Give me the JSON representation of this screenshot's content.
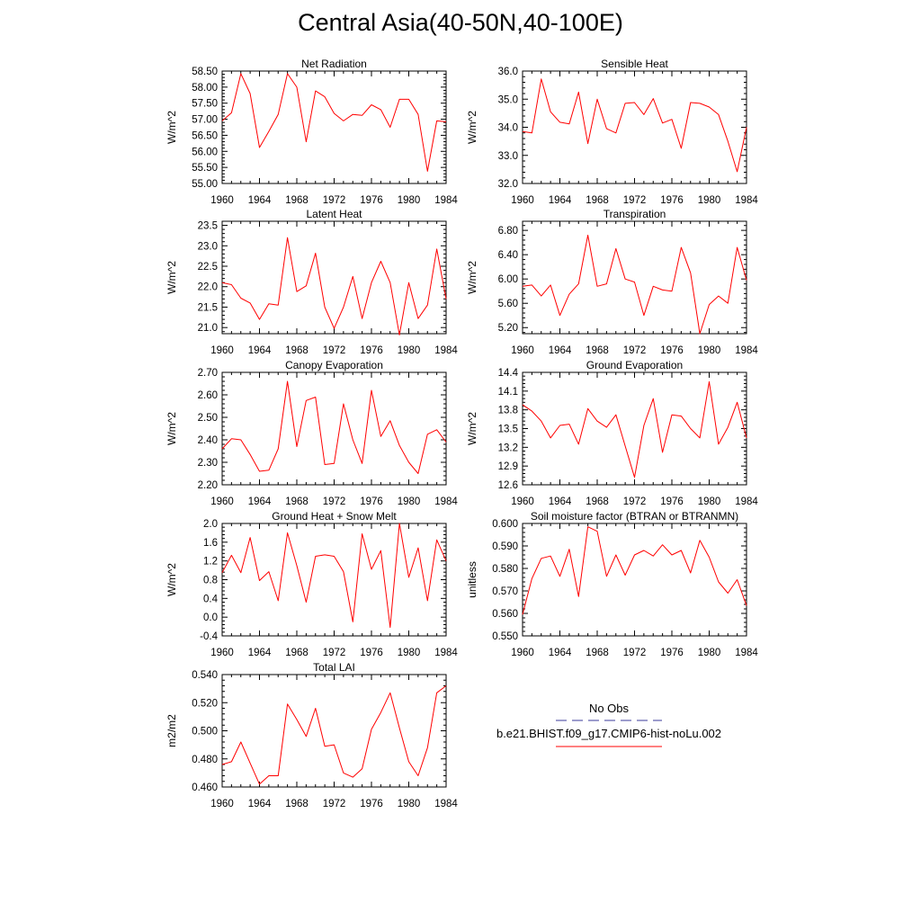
{
  "title": "Central Asia(40-50N,40-100E)",
  "colors": {
    "model_line": "#ff0000",
    "obs_line": "#3a3a9a",
    "frame": "#000000"
  },
  "legend": {
    "obs_label": "No Obs",
    "model_label": "b.e21.BHIST.f09_g17.CMIP6-hist-noLu.002"
  },
  "chart_data": [
    {
      "type": "line",
      "title": "Net Radiation",
      "ylabel": "W/m^2",
      "xlim": [
        1960,
        1984
      ],
      "ylim": [
        55.0,
        58.5
      ],
      "xticks": [
        1960,
        1964,
        1968,
        1972,
        1976,
        1980,
        1984
      ],
      "yticks": [
        55.0,
        55.5,
        56.0,
        56.5,
        57.0,
        57.5,
        58.0,
        58.5
      ],
      "ytick_labels": [
        "55.00",
        "55.50",
        "56.00",
        "56.50",
        "57.00",
        "57.50",
        "58.00",
        "58.50"
      ],
      "x": [
        1960,
        1961,
        1962,
        1963,
        1964,
        1965,
        1966,
        1967,
        1968,
        1969,
        1970,
        1971,
        1972,
        1973,
        1974,
        1975,
        1976,
        1977,
        1978,
        1979,
        1980,
        1981,
        1982,
        1983,
        1984
      ],
      "series": [
        {
          "name": "b.e21.BHIST.f09_g17.CMIP6-hist-noLu.002",
          "values": [
            56.95,
            57.2,
            58.42,
            57.8,
            56.12,
            56.62,
            57.15,
            58.42,
            58.0,
            56.3,
            57.88,
            57.7,
            57.18,
            56.95,
            57.15,
            57.12,
            57.45,
            57.3,
            56.75,
            57.62,
            57.62,
            57.15,
            55.38,
            56.95,
            56.92
          ]
        }
      ]
    },
    {
      "type": "line",
      "title": "Sensible Heat",
      "ylabel": "W/m^2",
      "xlim": [
        1960,
        1984
      ],
      "ylim": [
        32.0,
        36.0
      ],
      "xticks": [
        1960,
        1964,
        1968,
        1972,
        1976,
        1980,
        1984
      ],
      "yticks": [
        32.0,
        33.0,
        34.0,
        35.0,
        36.0
      ],
      "ytick_labels": [
        "32.0",
        "33.0",
        "34.0",
        "35.0",
        "36.0"
      ],
      "x": [
        1960,
        1961,
        1962,
        1963,
        1964,
        1965,
        1966,
        1967,
        1968,
        1969,
        1970,
        1971,
        1972,
        1973,
        1974,
        1975,
        1976,
        1977,
        1978,
        1979,
        1980,
        1981,
        1982,
        1983,
        1984
      ],
      "series": [
        {
          "name": "b.e21.BHIST.f09_g17.CMIP6-hist-noLu.002",
          "values": [
            33.85,
            33.8,
            35.72,
            34.55,
            34.18,
            34.12,
            35.25,
            33.42,
            35.0,
            33.95,
            33.8,
            34.85,
            34.88,
            34.45,
            35.02,
            34.15,
            34.28,
            33.25,
            34.88,
            34.85,
            34.72,
            34.45,
            33.5,
            32.42,
            34.0
          ]
        }
      ]
    },
    {
      "type": "line",
      "title": "Latent Heat",
      "ylabel": "W/m^2",
      "xlim": [
        1960,
        1984
      ],
      "ylim": [
        20.85,
        23.6
      ],
      "xticks": [
        1960,
        1964,
        1968,
        1972,
        1976,
        1980,
        1984
      ],
      "yticks": [
        21.0,
        21.5,
        22.0,
        22.5,
        23.0,
        23.5
      ],
      "ytick_labels": [
        "21.0",
        "21.5",
        "22.0",
        "22.5",
        "23.0",
        "23.5"
      ],
      "x": [
        1960,
        1961,
        1962,
        1963,
        1964,
        1965,
        1966,
        1967,
        1968,
        1969,
        1970,
        1971,
        1972,
        1973,
        1974,
        1975,
        1976,
        1977,
        1978,
        1979,
        1980,
        1981,
        1982,
        1983,
        1984
      ],
      "series": [
        {
          "name": "b.e21.BHIST.f09_g17.CMIP6-hist-noLu.002",
          "values": [
            22.1,
            22.05,
            21.72,
            21.6,
            21.2,
            21.58,
            21.55,
            23.2,
            21.88,
            22.02,
            22.82,
            21.5,
            20.98,
            21.5,
            22.25,
            21.22,
            22.1,
            22.62,
            22.1,
            20.82,
            22.1,
            21.22,
            21.55,
            22.92,
            21.7
          ]
        }
      ]
    },
    {
      "type": "line",
      "title": "Transpiration",
      "ylabel": "W/m^2",
      "xlim": [
        1960,
        1984
      ],
      "ylim": [
        5.1,
        6.95
      ],
      "xticks": [
        1960,
        1964,
        1968,
        1972,
        1976,
        1980,
        1984
      ],
      "yticks": [
        5.2,
        5.6,
        6.0,
        6.4,
        6.8
      ],
      "ytick_labels": [
        "5.20",
        "5.60",
        "6.00",
        "6.40",
        "6.80"
      ],
      "x": [
        1960,
        1961,
        1962,
        1963,
        1964,
        1965,
        1966,
        1967,
        1968,
        1969,
        1970,
        1971,
        1972,
        1973,
        1974,
        1975,
        1976,
        1977,
        1978,
        1979,
        1980,
        1981,
        1982,
        1983,
        1984
      ],
      "series": [
        {
          "name": "b.e21.BHIST.f09_g17.CMIP6-hist-noLu.002",
          "values": [
            5.88,
            5.9,
            5.72,
            5.9,
            5.4,
            5.75,
            5.92,
            6.72,
            5.88,
            5.92,
            6.5,
            6.0,
            5.95,
            5.4,
            5.88,
            5.82,
            5.8,
            6.52,
            6.1,
            5.1,
            5.58,
            5.72,
            5.6,
            6.52,
            5.98
          ]
        }
      ]
    },
    {
      "type": "line",
      "title": "Canopy Evaporation",
      "ylabel": "W/m^2",
      "xlim": [
        1960,
        1984
      ],
      "ylim": [
        2.2,
        2.7
      ],
      "xticks": [
        1960,
        1964,
        1968,
        1972,
        1976,
        1980,
        1984
      ],
      "yticks": [
        2.2,
        2.3,
        2.4,
        2.5,
        2.6,
        2.7
      ],
      "ytick_labels": [
        "2.20",
        "2.30",
        "2.40",
        "2.50",
        "2.60",
        "2.70"
      ],
      "x": [
        1960,
        1961,
        1962,
        1963,
        1964,
        1965,
        1966,
        1967,
        1968,
        1969,
        1970,
        1971,
        1972,
        1973,
        1974,
        1975,
        1976,
        1977,
        1978,
        1979,
        1980,
        1981,
        1982,
        1983,
        1984
      ],
      "series": [
        {
          "name": "b.e21.BHIST.f09_g17.CMIP6-hist-noLu.002",
          "values": [
            2.36,
            2.405,
            2.4,
            2.335,
            2.26,
            2.265,
            2.36,
            2.66,
            2.37,
            2.575,
            2.59,
            2.29,
            2.295,
            2.56,
            2.4,
            2.295,
            2.62,
            2.415,
            2.485,
            2.375,
            2.3,
            2.25,
            2.425,
            2.445,
            2.39
          ]
        }
      ]
    },
    {
      "type": "line",
      "title": "Ground Evaporation",
      "ylabel": "W/m^2",
      "xlim": [
        1960,
        1984
      ],
      "ylim": [
        12.6,
        14.4
      ],
      "xticks": [
        1960,
        1964,
        1968,
        1972,
        1976,
        1980,
        1984
      ],
      "yticks": [
        12.6,
        12.9,
        13.2,
        13.5,
        13.8,
        14.1,
        14.4
      ],
      "ytick_labels": [
        "12.6",
        "12.9",
        "13.2",
        "13.5",
        "13.8",
        "14.1",
        "14.4"
      ],
      "x": [
        1960,
        1961,
        1962,
        1963,
        1964,
        1965,
        1966,
        1967,
        1968,
        1969,
        1970,
        1971,
        1972,
        1973,
        1974,
        1975,
        1976,
        1977,
        1978,
        1979,
        1980,
        1981,
        1982,
        1983,
        1984
      ],
      "series": [
        {
          "name": "b.e21.BHIST.f09_g17.CMIP6-hist-noLu.002",
          "values": [
            13.88,
            13.78,
            13.62,
            13.35,
            13.55,
            13.57,
            13.25,
            13.82,
            13.62,
            13.52,
            13.72,
            13.22,
            12.72,
            13.55,
            13.98,
            13.12,
            13.72,
            13.7,
            13.5,
            13.35,
            14.25,
            13.25,
            13.52,
            13.92,
            13.35
          ]
        }
      ]
    },
    {
      "type": "line",
      "title": "Ground Heat + Snow Melt",
      "ylabel": "W/m^2",
      "xlim": [
        1960,
        1984
      ],
      "ylim": [
        -0.4,
        2.0
      ],
      "xticks": [
        1960,
        1964,
        1968,
        1972,
        1976,
        1980,
        1984
      ],
      "yticks": [
        -0.4,
        0.0,
        0.4,
        0.8,
        1.2,
        1.6,
        2.0
      ],
      "ytick_labels": [
        "-0.4",
        "0.0",
        "0.4",
        "0.8",
        "1.2",
        "1.6",
        "2.0"
      ],
      "x": [
        1960,
        1961,
        1962,
        1963,
        1964,
        1965,
        1966,
        1967,
        1968,
        1969,
        1970,
        1971,
        1972,
        1973,
        1974,
        1975,
        1976,
        1977,
        1978,
        1979,
        1980,
        1981,
        1982,
        1983,
        1984
      ],
      "series": [
        {
          "name": "b.e21.BHIST.f09_g17.CMIP6-hist-noLu.002",
          "values": [
            0.95,
            1.32,
            0.95,
            1.7,
            0.78,
            0.97,
            0.35,
            1.8,
            1.1,
            0.32,
            1.3,
            1.33,
            1.3,
            0.97,
            -0.1,
            1.78,
            1.02,
            1.42,
            -0.22,
            2.0,
            0.85,
            1.48,
            0.35,
            1.65,
            1.2
          ]
        }
      ]
    },
    {
      "type": "line",
      "title": "Soil moisture factor (BTRAN or BTRANMN)",
      "ylabel": "unitless",
      "xlim": [
        1960,
        1984
      ],
      "ylim": [
        0.55,
        0.6
      ],
      "xticks": [
        1960,
        1964,
        1968,
        1972,
        1976,
        1980,
        1984
      ],
      "yticks": [
        0.55,
        0.56,
        0.57,
        0.58,
        0.59,
        0.6
      ],
      "ytick_labels": [
        "0.550",
        "0.560",
        "0.570",
        "0.580",
        "0.590",
        "0.600"
      ],
      "x": [
        1960,
        1961,
        1962,
        1963,
        1964,
        1965,
        1966,
        1967,
        1968,
        1969,
        1970,
        1971,
        1972,
        1973,
        1974,
        1975,
        1976,
        1977,
        1978,
        1979,
        1980,
        1981,
        1982,
        1983,
        1984
      ],
      "series": [
        {
          "name": "b.e21.BHIST.f09_g17.CMIP6-hist-noLu.002",
          "values": [
            0.5595,
            0.5755,
            0.5845,
            0.5855,
            0.5765,
            0.5885,
            0.5675,
            0.5985,
            0.5965,
            0.5765,
            0.586,
            0.577,
            0.586,
            0.588,
            0.5855,
            0.5905,
            0.586,
            0.588,
            0.578,
            0.5925,
            0.585,
            0.574,
            0.569,
            0.575,
            0.5635
          ]
        }
      ]
    },
    {
      "type": "line",
      "title": "Total LAI",
      "ylabel": "m2/m2",
      "xlim": [
        1960,
        1984
      ],
      "ylim": [
        0.46,
        0.54
      ],
      "xticks": [
        1960,
        1964,
        1968,
        1972,
        1976,
        1980,
        1984
      ],
      "yticks": [
        0.46,
        0.48,
        0.5,
        0.52,
        0.54
      ],
      "ytick_labels": [
        "0.460",
        "0.480",
        "0.500",
        "0.520",
        "0.540"
      ],
      "x": [
        1960,
        1961,
        1962,
        1963,
        1964,
        1965,
        1966,
        1967,
        1968,
        1969,
        1970,
        1971,
        1972,
        1973,
        1974,
        1975,
        1976,
        1977,
        1978,
        1979,
        1980,
        1981,
        1982,
        1983,
        1984
      ],
      "series": [
        {
          "name": "b.e21.BHIST.f09_g17.CMIP6-hist-noLu.002",
          "values": [
            0.476,
            0.478,
            0.492,
            0.477,
            0.462,
            0.468,
            0.468,
            0.519,
            0.508,
            0.496,
            0.516,
            0.489,
            0.49,
            0.47,
            0.467,
            0.473,
            0.501,
            0.513,
            0.527,
            0.502,
            0.478,
            0.468,
            0.488,
            0.527,
            0.532
          ]
        }
      ]
    }
  ]
}
